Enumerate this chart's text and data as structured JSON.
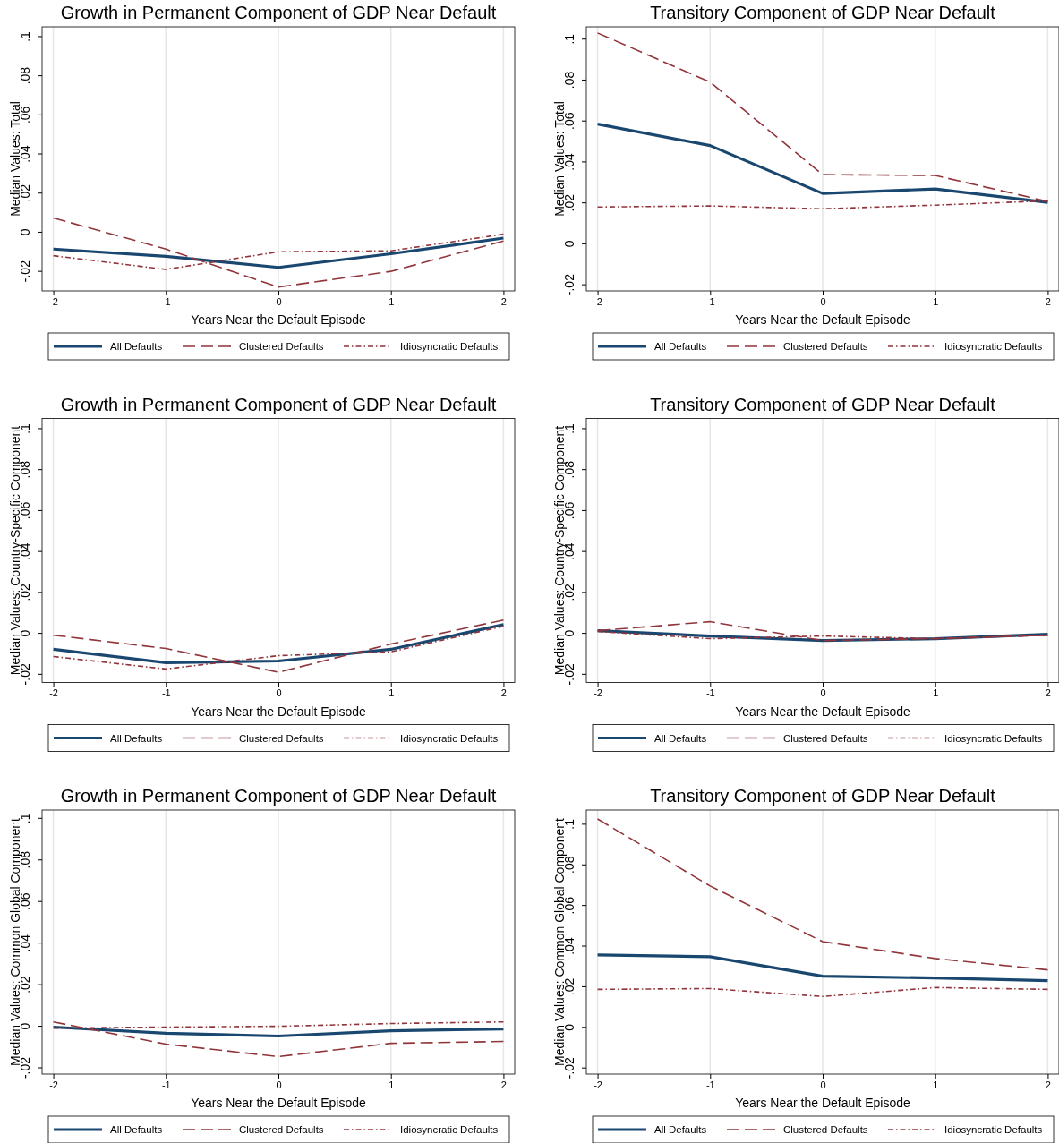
{
  "chart_data": [
    {
      "type": "line",
      "title": "Growth in Permanent Component of GDP Near Default",
      "xlabel": "Years Near the Default Episode",
      "ylabel": "Median Values: Total",
      "x": [
        -2,
        -1,
        0,
        1,
        2
      ],
      "xlim": [
        -2.1,
        2.1
      ],
      "xticks": [
        -2,
        -1,
        0,
        1,
        2
      ],
      "ylim": [
        -0.03,
        0.105
      ],
      "yticks": [
        {
          "value": -0.02,
          "label": "-.02"
        },
        {
          "value": 0,
          "label": "0"
        },
        {
          "value": 0.02,
          "label": ".02"
        },
        {
          "value": 0.04,
          "label": ".04"
        },
        {
          "value": 0.06,
          "label": ".06"
        },
        {
          "value": 0.08,
          "label": ".08"
        },
        {
          "value": 0.1,
          "label": ".1"
        }
      ],
      "grid": "x",
      "legend": "bottom",
      "marker": "none",
      "series": [
        {
          "name": "All Defaults",
          "color": "#1a476f",
          "line_style": "solid",
          "values": [
            -0.0086,
            -0.0123,
            -0.018,
            -0.011,
            -0.003
          ]
        },
        {
          "name": "Clustered Defaults",
          "color": "#90353b",
          "line_style": "dashed",
          "values": [
            0.0073,
            -0.0086,
            -0.028,
            -0.02,
            -0.0045
          ]
        },
        {
          "name": "Idiosyncratic Defaults",
          "color": "#90353b",
          "line_style": "dotted",
          "values": [
            -0.012,
            -0.019,
            -0.01,
            -0.0095,
            -0.001
          ]
        }
      ]
    },
    {
      "type": "line",
      "title": "Transitory Component of GDP Near Default",
      "xlabel": "Years Near the Default Episode",
      "ylabel": "Median Values: Total",
      "x": [
        -2,
        -1,
        0,
        1,
        2
      ],
      "xlim": [
        -2.1,
        2.1
      ],
      "xticks": [
        -2,
        -1,
        0,
        1,
        2
      ],
      "ylim": [
        -0.023,
        0.106
      ],
      "yticks": [
        {
          "value": -0.02,
          "label": "-.02"
        },
        {
          "value": 0,
          "label": "0"
        },
        {
          "value": 0.02,
          "label": ".02"
        },
        {
          "value": 0.04,
          "label": ".04"
        },
        {
          "value": 0.06,
          "label": ".06"
        },
        {
          "value": 0.08,
          "label": ".08"
        },
        {
          "value": 0.1,
          "label": ".1"
        }
      ],
      "grid": "x",
      "legend": "bottom",
      "marker": "none",
      "series": [
        {
          "name": "All Defaults",
          "color": "#1a476f",
          "line_style": "solid",
          "values": [
            0.0585,
            0.048,
            0.0246,
            0.0268,
            0.0202
          ]
        },
        {
          "name": "Clustered Defaults",
          "color": "#90353b",
          "line_style": "dashed",
          "values": [
            0.103,
            0.079,
            0.0338,
            0.0334,
            0.0207
          ]
        },
        {
          "name": "Idiosyncratic Defaults",
          "color": "#90353b",
          "line_style": "dotted",
          "values": [
            0.018,
            0.0185,
            0.0171,
            0.0189,
            0.021
          ]
        }
      ]
    },
    {
      "type": "line",
      "title": "Growth in Permanent Component of GDP Near Default",
      "xlabel": "Years Near the Default Episode",
      "ylabel": "Median Values: Country-Specific Component",
      "x": [
        -2,
        -1,
        0,
        1,
        2
      ],
      "xlim": [
        -2.1,
        2.1
      ],
      "xticks": [
        -2,
        -1,
        0,
        1,
        2
      ],
      "ylim": [
        -0.024,
        0.105
      ],
      "yticks": [
        {
          "value": -0.02,
          "label": "-.02"
        },
        {
          "value": 0,
          "label": "0"
        },
        {
          "value": 0.02,
          "label": ".02"
        },
        {
          "value": 0.04,
          "label": ".04"
        },
        {
          "value": 0.06,
          "label": ".06"
        },
        {
          "value": 0.08,
          "label": ".08"
        },
        {
          "value": 0.1,
          "label": ".1"
        }
      ],
      "grid": "x",
      "legend": "bottom",
      "marker": "none",
      "series": [
        {
          "name": "All Defaults",
          "color": "#1a476f",
          "line_style": "solid",
          "values": [
            -0.0078,
            -0.0143,
            -0.0135,
            -0.0078,
            0.0043
          ]
        },
        {
          "name": "Clustered Defaults",
          "color": "#90353b",
          "line_style": "dashed",
          "values": [
            -0.0009,
            -0.0074,
            -0.019,
            -0.0052,
            0.0065
          ]
        },
        {
          "name": "Idiosyncratic Defaults",
          "color": "#90353b",
          "line_style": "dotted",
          "values": [
            -0.0113,
            -0.0174,
            -0.0109,
            -0.009,
            0.0035
          ]
        }
      ]
    },
    {
      "type": "line",
      "title": "Transitory Component of GDP Near Default",
      "xlabel": "Years Near the Default Episode",
      "ylabel": "Median Values: Country-Specific Component",
      "x": [
        -2,
        -1,
        0,
        1,
        2
      ],
      "xlim": [
        -2.1,
        2.1
      ],
      "xticks": [
        -2,
        -1,
        0,
        1,
        2
      ],
      "ylim": [
        -0.024,
        0.105
      ],
      "yticks": [
        {
          "value": -0.02,
          "label": "-.02"
        },
        {
          "value": 0,
          "label": "0"
        },
        {
          "value": 0.02,
          "label": ".02"
        },
        {
          "value": 0.04,
          "label": ".04"
        },
        {
          "value": 0.06,
          "label": ".06"
        },
        {
          "value": 0.08,
          "label": ".08"
        },
        {
          "value": 0.1,
          "label": ".1"
        }
      ],
      "grid": "x",
      "legend": "bottom",
      "marker": "none",
      "series": [
        {
          "name": "All Defaults",
          "color": "#1a476f",
          "line_style": "solid",
          "values": [
            0.0013,
            -0.0013,
            -0.0035,
            -0.0026,
            -0.0004
          ]
        },
        {
          "name": "Clustered Defaults",
          "color": "#90353b",
          "line_style": "dashed",
          "values": [
            0.0013,
            0.0057,
            -0.0035,
            -0.0026,
            -0.0009
          ]
        },
        {
          "name": "Idiosyncratic Defaults",
          "color": "#90353b",
          "line_style": "dotted",
          "values": [
            0.0009,
            -0.0026,
            -0.0013,
            -0.0026,
            -0.0009
          ]
        }
      ]
    },
    {
      "type": "line",
      "title": "Growth in Permanent Component of GDP Near Default",
      "xlabel": "Years Near the Default Episode",
      "ylabel": "Median Values: Common Global Component",
      "x": [
        -2,
        -1,
        0,
        1,
        2
      ],
      "xlim": [
        -2.1,
        2.1
      ],
      "xticks": [
        -2,
        -1,
        0,
        1,
        2
      ],
      "ylim": [
        -0.023,
        0.104
      ],
      "yticks": [
        {
          "value": -0.02,
          "label": "-.02"
        },
        {
          "value": 0,
          "label": "0"
        },
        {
          "value": 0.02,
          "label": ".02"
        },
        {
          "value": 0.04,
          "label": ".04"
        },
        {
          "value": 0.06,
          "label": ".06"
        },
        {
          "value": 0.08,
          "label": ".08"
        },
        {
          "value": 0.1,
          "label": ".1"
        }
      ],
      "grid": "x",
      "legend": "bottom",
      "marker": "none",
      "series": [
        {
          "name": "All Defaults",
          "color": "#1a476f",
          "line_style": "solid",
          "values": [
            -0.0004,
            -0.0034,
            -0.0047,
            -0.0022,
            -0.0013
          ]
        },
        {
          "name": "Clustered Defaults",
          "color": "#90353b",
          "line_style": "dashed",
          "values": [
            0.0021,
            -0.0086,
            -0.0146,
            -0.0082,
            -0.0073
          ]
        },
        {
          "name": "Idiosyncratic Defaults",
          "color": "#90353b",
          "line_style": "dotted",
          "values": [
            -0.0009,
            -0.0004,
            0,
            0.0013,
            0.0021
          ]
        }
      ]
    },
    {
      "type": "line",
      "title": "Transitory Component of GDP Near Default",
      "xlabel": "Years Near the Default Episode",
      "ylabel": "Median Values: Common Global Component",
      "x": [
        -2,
        -1,
        0,
        1,
        2
      ],
      "xlim": [
        -2.1,
        2.1
      ],
      "xticks": [
        -2,
        -1,
        0,
        1,
        2
      ],
      "ylim": [
        -0.023,
        0.107
      ],
      "yticks": [
        {
          "value": -0.02,
          "label": "-.02"
        },
        {
          "value": 0,
          "label": "0"
        },
        {
          "value": 0.02,
          "label": ".02"
        },
        {
          "value": 0.04,
          "label": ".04"
        },
        {
          "value": 0.06,
          "label": ".06"
        },
        {
          "value": 0.08,
          "label": ".08"
        },
        {
          "value": 0.1,
          "label": ".1"
        }
      ],
      "grid": "x",
      "legend": "bottom",
      "marker": "none",
      "series": [
        {
          "name": "All Defaults",
          "color": "#1a476f",
          "line_style": "solid",
          "values": [
            0.0357,
            0.0348,
            0.0252,
            0.0243,
            0.023
          ]
        },
        {
          "name": "Clustered Defaults",
          "color": "#90353b",
          "line_style": "dashed",
          "values": [
            0.1026,
            0.0696,
            0.0422,
            0.0339,
            0.0283
          ]
        },
        {
          "name": "Idiosyncratic Defaults",
          "color": "#90353b",
          "line_style": "dotted",
          "values": [
            0.0187,
            0.0191,
            0.0152,
            0.0196,
            0.0187
          ]
        }
      ]
    }
  ]
}
